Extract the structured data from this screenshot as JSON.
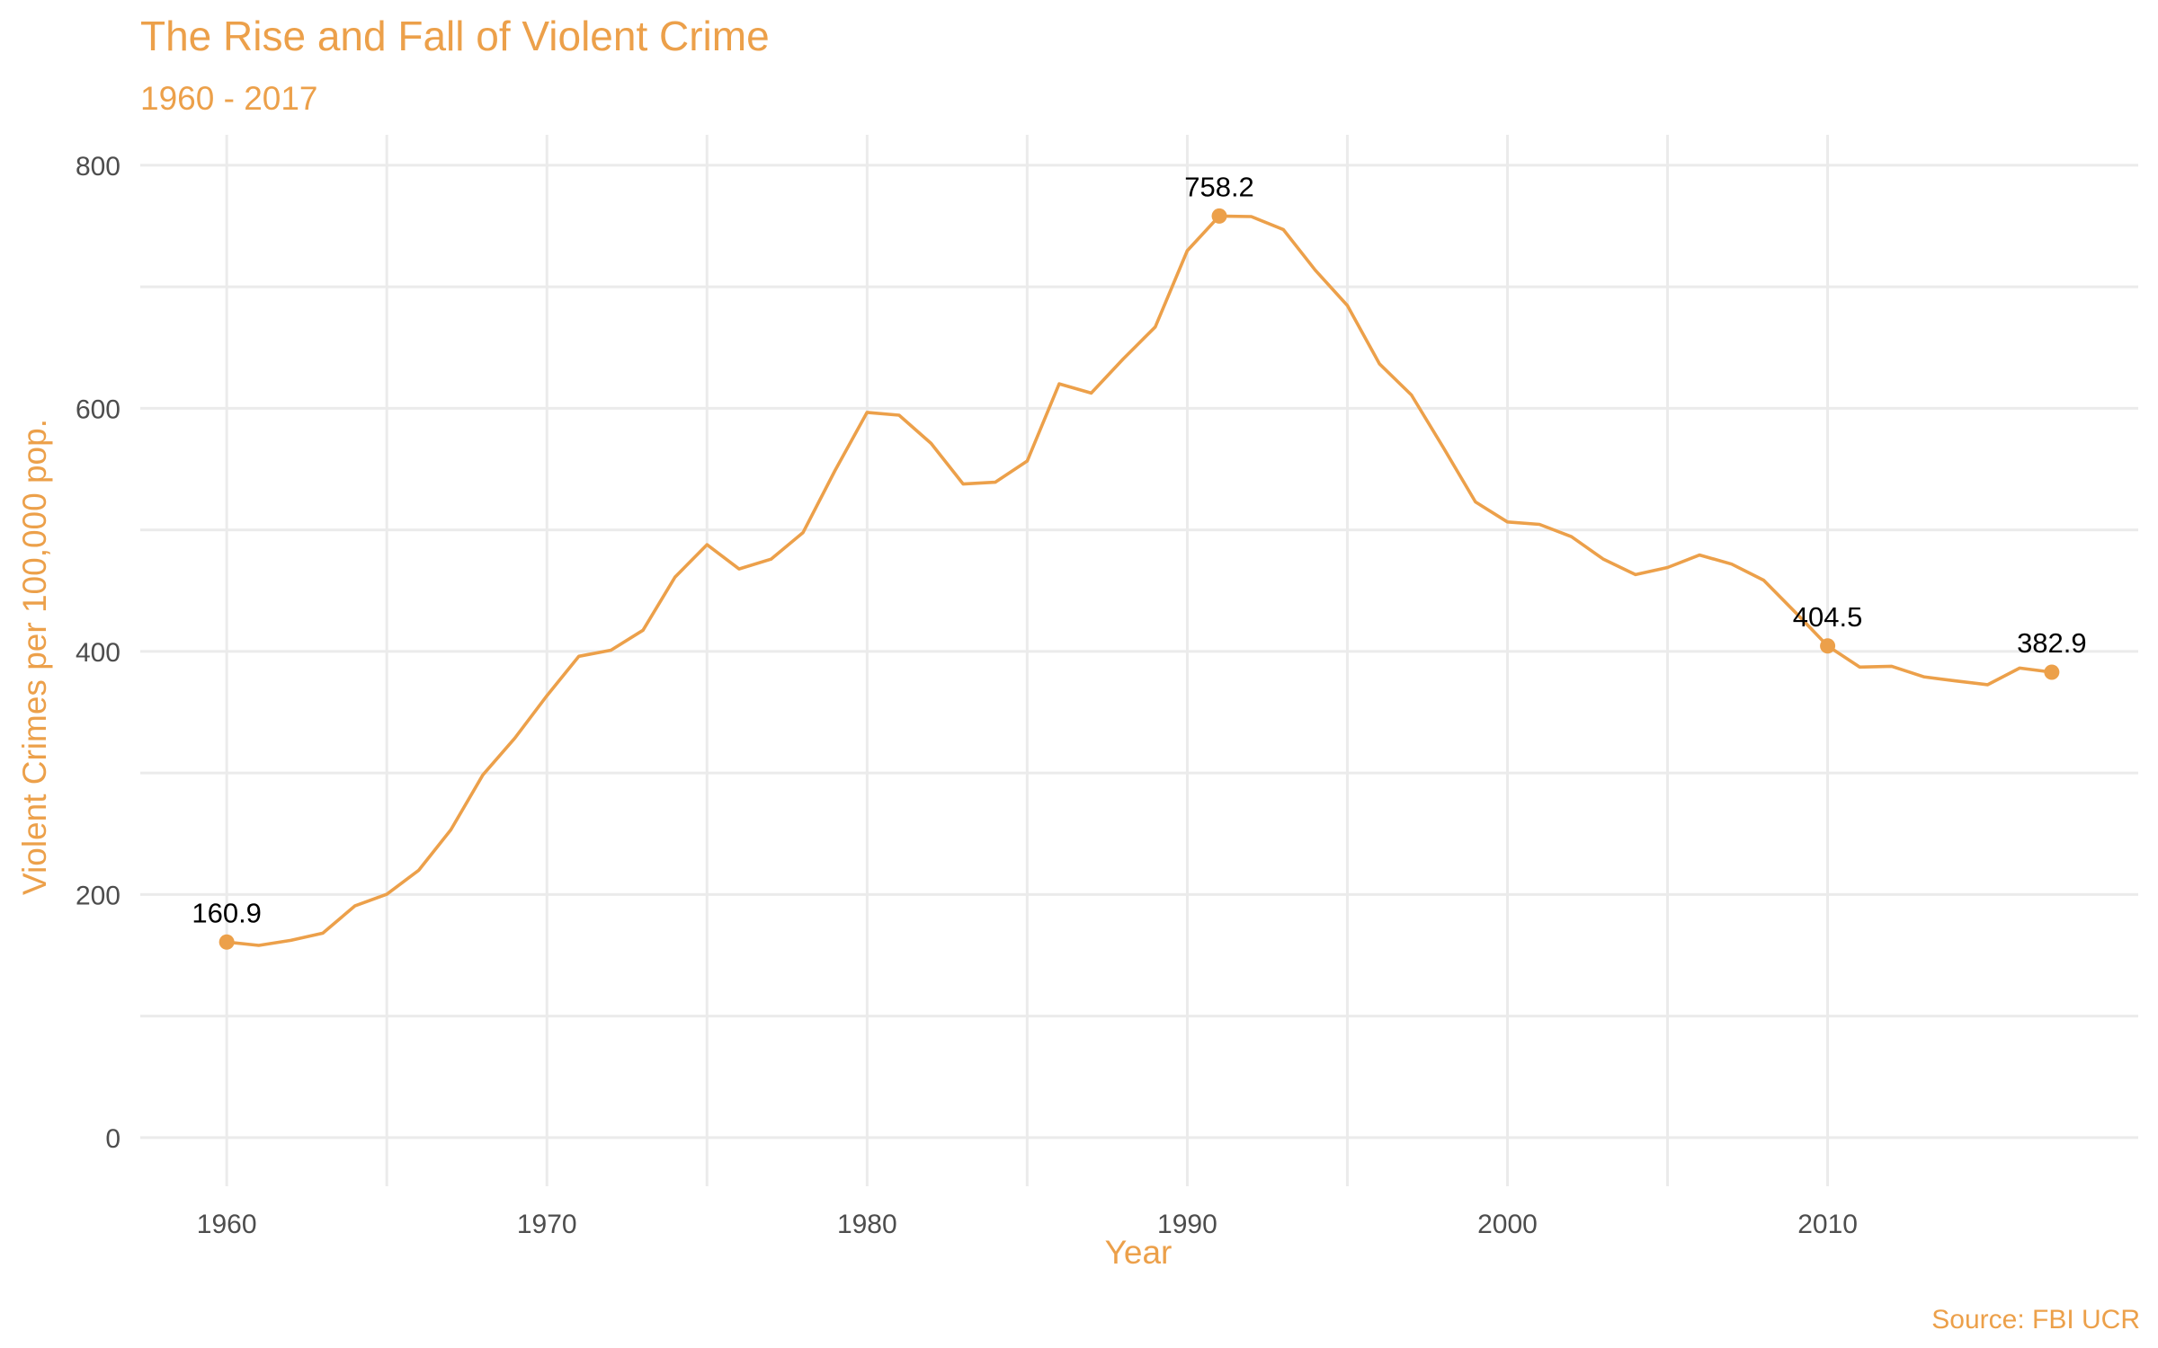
{
  "colors": {
    "accent": "#ECA04A",
    "grid": "#EBEBEB",
    "tick_text": "#4D4D4D",
    "data_label_text": "#000000"
  },
  "chart_data": {
    "type": "line",
    "title": "The Rise and Fall of Violent Crime",
    "subtitle": "1960 - 2017",
    "xlabel": "Year",
    "ylabel": "Violent Crimes per 100,000 pop.",
    "caption": "Source: FBI UCR",
    "xlim": [
      1957.3,
      2019.7
    ],
    "ylim": [
      -40,
      825
    ],
    "x_ticks": [
      1960,
      1970,
      1980,
      1990,
      2000,
      2010
    ],
    "x_tick_labels": [
      "1960",
      "1970",
      "1980",
      "1990",
      "2000",
      "2010"
    ],
    "y_ticks": [
      0,
      200,
      400,
      600,
      800
    ],
    "y_tick_labels": [
      "0",
      "200",
      "400",
      "600",
      "800"
    ],
    "grid": true,
    "legend": "none",
    "series": [
      {
        "x": [
          1960,
          1961,
          1962,
          1963,
          1964,
          1965,
          1966,
          1967,
          1968,
          1969,
          1970,
          1971,
          1972,
          1973,
          1974,
          1975,
          1976,
          1977,
          1978,
          1979,
          1980,
          1981,
          1982,
          1983,
          1984,
          1985,
          1986,
          1987,
          1988,
          1989,
          1990,
          1991,
          1992,
          1993,
          1994,
          1995,
          1996,
          1997,
          1998,
          1999,
          2000,
          2001,
          2002,
          2003,
          2004,
          2005,
          2006,
          2007,
          2008,
          2009,
          2010,
          2011,
          2012,
          2013,
          2014,
          2015,
          2016,
          2017
        ],
        "values": [
          160.9,
          158.1,
          162.3,
          168.2,
          190.6,
          200.2,
          220.0,
          253.2,
          298.4,
          328.7,
          363.5,
          396.0,
          401.0,
          417.4,
          461.1,
          487.8,
          467.8,
          475.9,
          497.8,
          548.9,
          596.6,
          594.3,
          571.1,
          537.7,
          539.2,
          556.6,
          620.1,
          612.5,
          640.6,
          666.9,
          729.6,
          758.2,
          757.7,
          747.1,
          713.6,
          684.5,
          636.6,
          611.0,
          567.6,
          523.0,
          506.5,
          504.5,
          494.4,
          475.8,
          463.2,
          469.0,
          479.3,
          471.8,
          458.6,
          431.9,
          404.5,
          387.1,
          387.8,
          379.1,
          375.7,
          372.6,
          386.3,
          382.9
        ]
      }
    ],
    "annotations": [
      {
        "x": 1960,
        "y": 160.9,
        "label": "160.9"
      },
      {
        "x": 1991,
        "y": 758.2,
        "label": "758.2"
      },
      {
        "x": 2010,
        "y": 404.5,
        "label": "404.5"
      },
      {
        "x": 2017,
        "y": 382.9,
        "label": "382.9"
      }
    ]
  }
}
